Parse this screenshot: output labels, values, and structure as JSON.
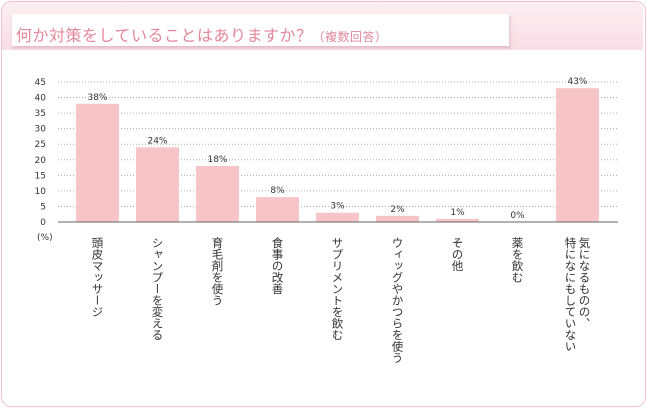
{
  "title": {
    "main": "何か対策をしていることはありますか？",
    "sub": "（複数回答）"
  },
  "colors": {
    "bar": "#f7c5c8",
    "accent": "#e4879c",
    "grid": "#aaaaaa"
  },
  "chart_data": {
    "type": "bar",
    "title": "何か対策をしていることはありますか？（複数回答）",
    "ylabel": "(%)",
    "ylim": [
      0,
      45
    ],
    "yticks": [
      0,
      5,
      10,
      15,
      20,
      25,
      30,
      35,
      40,
      45
    ],
    "grid": true,
    "categories": [
      "頭皮マッサージ",
      "シャンプーを変える",
      "育毛剤を使う",
      "食事の改善",
      "サプリメントを飲む",
      "ウィッグやかつらを使う",
      "その他",
      "薬を飲む",
      "気になるものの、\n特になにもしていない"
    ],
    "values": [
      38,
      24,
      18,
      8,
      3,
      2,
      1,
      0,
      43
    ],
    "value_labels": [
      "38%",
      "24%",
      "18%",
      "8%",
      "3%",
      "2%",
      "1%",
      "0%",
      "43%"
    ]
  }
}
